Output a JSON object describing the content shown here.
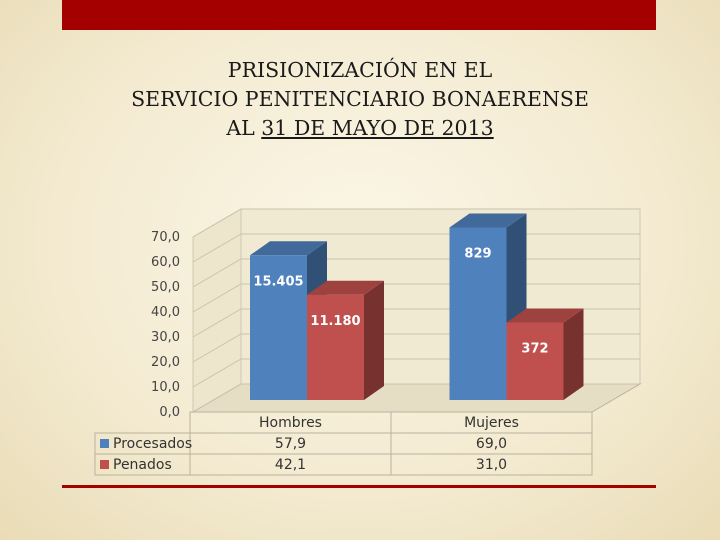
{
  "slide": {
    "title_line1": "PRISIONIZACIÓN EN EL",
    "title_line2": "SERVICIO PENITENCIARIO BONAERENSE",
    "title_line3_prefix": "AL ",
    "title_line3_underlined": "31 DE MAYO DE 2013"
  },
  "chart_data": {
    "type": "bar",
    "categories": [
      "Hombres",
      "Mujeres"
    ],
    "series": [
      {
        "name": "Procesados",
        "values": [
          57.9,
          69.0
        ],
        "table_values": [
          "57,9",
          "69,0"
        ],
        "data_labels": [
          "15.405",
          "829"
        ],
        "color": "#4f81bd"
      },
      {
        "name": "Penados",
        "values": [
          42.1,
          31.0
        ],
        "table_values": [
          "42,1",
          "31,0"
        ],
        "data_labels": [
          "11.180",
          "372"
        ],
        "color": "#c0504d"
      }
    ],
    "y_ticks": [
      "70,0",
      "60,0",
      "50,0",
      "40,0",
      "30,0",
      "20,0",
      "10,0",
      "0,0"
    ],
    "ylim": [
      0,
      70
    ],
    "grid": true,
    "legend": "data table"
  }
}
